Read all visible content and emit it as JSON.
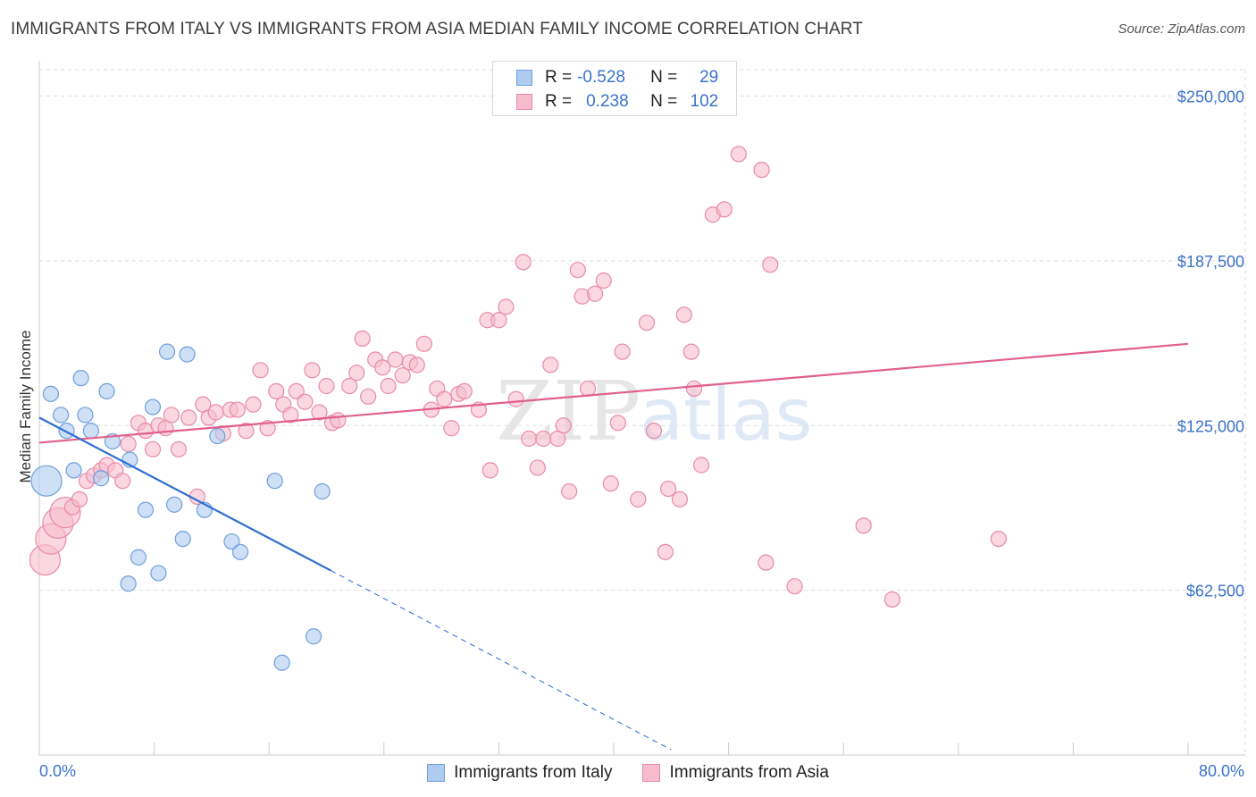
{
  "title": "IMMIGRANTS FROM ITALY VS IMMIGRANTS FROM ASIA MEDIAN FAMILY INCOME CORRELATION CHART",
  "source": "Source: ZipAtlas.com",
  "watermark": {
    "zip": "ZIP",
    "atlas": "atlas"
  },
  "legend": {
    "rows": [
      {
        "r_label": "R =",
        "r_value": "-0.528",
        "n_label": "N =",
        "n_value": "29"
      },
      {
        "r_label": "R =",
        "r_value": "0.238",
        "n_label": "N =",
        "n_value": "102"
      }
    ]
  },
  "chart_data": {
    "type": "scatter",
    "title": "IMMIGRANTS FROM ITALY VS IMMIGRANTS FROM ASIA MEDIAN FAMILY INCOME CORRELATION CHART",
    "xlabel": "",
    "ylabel": "Median Family Income",
    "xlim": [
      0,
      80
    ],
    "ylim": [
      0,
      260000
    ],
    "x_tick_labels": [
      "0.0%",
      "80.0%"
    ],
    "y_ticks": [
      62500,
      125000,
      187500,
      250000
    ],
    "y_tick_labels": [
      "$62,500",
      "$125,000",
      "$187,500",
      "$250,000"
    ],
    "colors": {
      "italy_fill": "#aecbf0",
      "italy_stroke": "#6f9fdc",
      "italy_line": "#2f6fd0",
      "asia_fill": "#f6bccd",
      "asia_stroke": "#e98aa8",
      "asia_line": "#e0608c",
      "axis_label": "#3b73c8"
    },
    "series": [
      {
        "name": "Immigrants from Italy",
        "trend": {
          "x0": 0,
          "y0": 128000,
          "x1": 20.3,
          "y1": 70000,
          "dash_to_x": 44,
          "dash_to_y": 2000
        },
        "points": [
          {
            "x": 0.5,
            "y": 104000,
            "big": true
          },
          {
            "x": 0.8,
            "y": 137000
          },
          {
            "x": 1.5,
            "y": 129000
          },
          {
            "x": 1.9,
            "y": 123000
          },
          {
            "x": 2.4,
            "y": 108000
          },
          {
            "x": 2.9,
            "y": 143000
          },
          {
            "x": 3.2,
            "y": 129000
          },
          {
            "x": 3.6,
            "y": 123000
          },
          {
            "x": 4.3,
            "y": 105000
          },
          {
            "x": 4.7,
            "y": 138000
          },
          {
            "x": 5.1,
            "y": 119000
          },
          {
            "x": 6.2,
            "y": 65000
          },
          {
            "x": 6.3,
            "y": 112000
          },
          {
            "x": 6.9,
            "y": 75000
          },
          {
            "x": 7.4,
            "y": 93000
          },
          {
            "x": 7.9,
            "y": 132000
          },
          {
            "x": 8.3,
            "y": 69000
          },
          {
            "x": 8.9,
            "y": 153000
          },
          {
            "x": 9.4,
            "y": 95000
          },
          {
            "x": 10.0,
            "y": 82000
          },
          {
            "x": 10.3,
            "y": 152000
          },
          {
            "x": 11.5,
            "y": 93000
          },
          {
            "x": 12.4,
            "y": 121000
          },
          {
            "x": 13.4,
            "y": 81000
          },
          {
            "x": 14.0,
            "y": 77000
          },
          {
            "x": 16.4,
            "y": 104000
          },
          {
            "x": 16.9,
            "y": 35000
          },
          {
            "x": 19.1,
            "y": 45000
          },
          {
            "x": 19.7,
            "y": 100000
          }
        ]
      },
      {
        "name": "Immigrants from Asia",
        "trend": {
          "x0": 0,
          "y0": 118500,
          "x1": 80,
          "y1": 156000
        },
        "points": [
          {
            "x": 0.4,
            "y": 74000,
            "big": true
          },
          {
            "x": 0.8,
            "y": 82000,
            "big": true
          },
          {
            "x": 1.3,
            "y": 88000,
            "big": true
          },
          {
            "x": 1.8,
            "y": 92000,
            "big": true
          },
          {
            "x": 2.3,
            "y": 94000
          },
          {
            "x": 2.8,
            "y": 97000
          },
          {
            "x": 3.3,
            "y": 104000
          },
          {
            "x": 3.8,
            "y": 106000
          },
          {
            "x": 4.3,
            "y": 108000
          },
          {
            "x": 4.7,
            "y": 110000
          },
          {
            "x": 5.3,
            "y": 108000
          },
          {
            "x": 5.8,
            "y": 104000
          },
          {
            "x": 6.2,
            "y": 118000
          },
          {
            "x": 6.9,
            "y": 126000
          },
          {
            "x": 7.4,
            "y": 123000
          },
          {
            "x": 7.9,
            "y": 116000
          },
          {
            "x": 8.3,
            "y": 125000
          },
          {
            "x": 8.8,
            "y": 124000
          },
          {
            "x": 9.2,
            "y": 129000
          },
          {
            "x": 9.7,
            "y": 116000
          },
          {
            "x": 10.4,
            "y": 128000
          },
          {
            "x": 11.0,
            "y": 98000
          },
          {
            "x": 11.4,
            "y": 133000
          },
          {
            "x": 11.8,
            "y": 128000
          },
          {
            "x": 12.3,
            "y": 130000
          },
          {
            "x": 12.8,
            "y": 122000
          },
          {
            "x": 13.3,
            "y": 131000
          },
          {
            "x": 13.8,
            "y": 131000
          },
          {
            "x": 14.4,
            "y": 123000
          },
          {
            "x": 14.9,
            "y": 133000
          },
          {
            "x": 15.4,
            "y": 146000
          },
          {
            "x": 15.9,
            "y": 124000
          },
          {
            "x": 16.5,
            "y": 138000
          },
          {
            "x": 17.0,
            "y": 133000
          },
          {
            "x": 17.5,
            "y": 129000
          },
          {
            "x": 17.9,
            "y": 138000
          },
          {
            "x": 18.5,
            "y": 134000
          },
          {
            "x": 19.0,
            "y": 146000
          },
          {
            "x": 19.5,
            "y": 130000
          },
          {
            "x": 20.0,
            "y": 140000
          },
          {
            "x": 20.4,
            "y": 126000
          },
          {
            "x": 20.8,
            "y": 127000
          },
          {
            "x": 21.6,
            "y": 140000
          },
          {
            "x": 22.1,
            "y": 145000
          },
          {
            "x": 22.5,
            "y": 158000
          },
          {
            "x": 22.9,
            "y": 136000
          },
          {
            "x": 23.4,
            "y": 150000
          },
          {
            "x": 23.9,
            "y": 147000
          },
          {
            "x": 24.3,
            "y": 140000
          },
          {
            "x": 24.8,
            "y": 150000
          },
          {
            "x": 25.3,
            "y": 144000
          },
          {
            "x": 25.8,
            "y": 149000
          },
          {
            "x": 26.3,
            "y": 148000
          },
          {
            "x": 26.8,
            "y": 156000
          },
          {
            "x": 27.3,
            "y": 131000
          },
          {
            "x": 27.7,
            "y": 139000
          },
          {
            "x": 28.2,
            "y": 135000
          },
          {
            "x": 28.7,
            "y": 124000
          },
          {
            "x": 29.2,
            "y": 137000
          },
          {
            "x": 29.6,
            "y": 138000
          },
          {
            "x": 30.6,
            "y": 131000
          },
          {
            "x": 31.2,
            "y": 165000
          },
          {
            "x": 31.4,
            "y": 108000
          },
          {
            "x": 32.0,
            "y": 165000
          },
          {
            "x": 32.5,
            "y": 170000
          },
          {
            "x": 33.2,
            "y": 135000
          },
          {
            "x": 33.7,
            "y": 187000
          },
          {
            "x": 34.1,
            "y": 120000
          },
          {
            "x": 34.7,
            "y": 109000
          },
          {
            "x": 35.1,
            "y": 120000
          },
          {
            "x": 35.6,
            "y": 148000
          },
          {
            "x": 36.1,
            "y": 120000
          },
          {
            "x": 36.5,
            "y": 125000
          },
          {
            "x": 36.9,
            "y": 100000
          },
          {
            "x": 37.5,
            "y": 184000
          },
          {
            "x": 37.8,
            "y": 174000
          },
          {
            "x": 38.2,
            "y": 139000
          },
          {
            "x": 38.7,
            "y": 175000
          },
          {
            "x": 39.3,
            "y": 180000
          },
          {
            "x": 39.8,
            "y": 103000
          },
          {
            "x": 40.3,
            "y": 126000
          },
          {
            "x": 40.6,
            "y": 153000
          },
          {
            "x": 41.7,
            "y": 97000
          },
          {
            "x": 42.3,
            "y": 164000
          },
          {
            "x": 42.8,
            "y": 123000
          },
          {
            "x": 43.6,
            "y": 77000
          },
          {
            "x": 43.8,
            "y": 101000
          },
          {
            "x": 44.6,
            "y": 97000
          },
          {
            "x": 44.9,
            "y": 167000
          },
          {
            "x": 45.4,
            "y": 153000
          },
          {
            "x": 45.6,
            "y": 139000
          },
          {
            "x": 46.1,
            "y": 110000
          },
          {
            "x": 46.9,
            "y": 205000
          },
          {
            "x": 47.7,
            "y": 207000
          },
          {
            "x": 48.7,
            "y": 228000
          },
          {
            "x": 50.3,
            "y": 222000
          },
          {
            "x": 50.6,
            "y": 73000
          },
          {
            "x": 50.9,
            "y": 186000
          },
          {
            "x": 52.6,
            "y": 64000
          },
          {
            "x": 57.4,
            "y": 87000
          },
          {
            "x": 59.4,
            "y": 59000
          },
          {
            "x": 66.8,
            "y": 82000
          }
        ]
      }
    ]
  },
  "bottom_legend": [
    {
      "label": "Immigrants from Italy"
    },
    {
      "label": "Immigrants from Asia"
    }
  ]
}
